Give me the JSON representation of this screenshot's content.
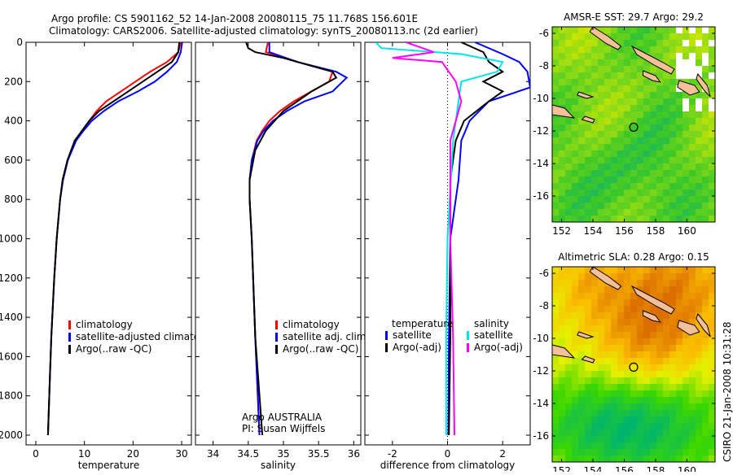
{
  "title_line1": "Argo profile: CS 5901162_52 14-Jan-2008 20080115_75 11.768S 156.601E",
  "title_line2": "Climatology: CARS2006. Satellite-adjusted climatology: synTS_20080113.nc (2d earlier)",
  "side_label": "CSIRO 21-Jan-2008 10:31:28",
  "colors": {
    "clim": "#ff0000",
    "sat": "#0000ff",
    "argo": "#000000",
    "sal_sat": "#00e5e5",
    "sal_argo": "#ff00ff"
  },
  "chart_data": [
    {
      "type": "line",
      "xlabel": "temperature",
      "ylabel": "",
      "xlim": [
        -2,
        32
      ],
      "ylim": [
        2050,
        0
      ],
      "xticks": [
        "0",
        "10",
        "20",
        "30"
      ],
      "xtick_values": [
        0,
        10,
        20,
        30
      ],
      "yticks": [
        "0",
        "200",
        "400",
        "600",
        "800",
        "1000",
        "1200",
        "1400",
        "1600",
        "1800",
        "2000"
      ],
      "legend": [
        "climatology",
        "satellite-adjusted climatology",
        "Argo(..raw -QC)"
      ],
      "series": [
        {
          "name": "climatology",
          "color": "clim",
          "depth": [
            0,
            50,
            100,
            150,
            200,
            250,
            300,
            350,
            400,
            450,
            500,
            600,
            700,
            800,
            1000,
            1200,
            1500,
            1700,
            2000
          ],
          "values": [
            29.8,
            29.3,
            27.0,
            23.5,
            20.5,
            17.5,
            14.5,
            12.5,
            11.0,
            9.5,
            8.2,
            6.6,
            5.6,
            5.0,
            4.3,
            3.8,
            3.2,
            2.9,
            2.5
          ]
        },
        {
          "name": "satellite-adjusted climatology",
          "color": "sat",
          "depth": [
            0,
            50,
            100,
            150,
            200,
            250,
            300,
            350,
            400,
            450,
            500,
            600,
            700,
            800,
            1000,
            1200,
            1500,
            1700,
            2000
          ],
          "values": [
            30.1,
            29.8,
            29.0,
            27.0,
            24.5,
            21.0,
            17.0,
            14.0,
            11.5,
            9.8,
            8.3,
            6.6,
            5.6,
            5.0,
            4.3,
            3.8,
            3.2,
            2.9,
            2.5
          ]
        },
        {
          "name": "Argo(..raw -QC)",
          "color": "argo",
          "depth": [
            0,
            50,
            100,
            150,
            200,
            250,
            300,
            350,
            400,
            450,
            500,
            600,
            700,
            800,
            1000,
            1200,
            1500,
            1700,
            2000
          ],
          "values": [
            29.5,
            29.3,
            28.0,
            25.0,
            22.0,
            19.0,
            16.0,
            13.0,
            11.0,
            9.5,
            8.0,
            6.5,
            5.5,
            5.0,
            4.3,
            3.8,
            3.2,
            2.9,
            2.5
          ]
        }
      ]
    },
    {
      "type": "line",
      "xlabel": "salinity",
      "xlim": [
        33.75,
        36.1
      ],
      "ylim": [
        2050,
        0
      ],
      "xticks": [
        "34",
        "34.5",
        "35",
        "35.5",
        "36"
      ],
      "xtick_values": [
        34,
        34.5,
        35,
        35.5,
        36
      ],
      "legend": [
        "climatology",
        "satellite adj. clim.",
        "Argo(..raw -QC)"
      ],
      "annotation": [
        "Argo AUSTRALIA",
        "PI: Susan Wijffels"
      ],
      "series": [
        {
          "name": "climatology",
          "color": "clim",
          "depth": [
            0,
            50,
            100,
            150,
            200,
            250,
            300,
            350,
            400,
            450,
            500,
            600,
            700,
            800,
            1000,
            1500,
            2000
          ],
          "values": [
            34.78,
            34.75,
            35.2,
            35.7,
            35.65,
            35.4,
            35.15,
            34.95,
            34.8,
            34.7,
            34.62,
            34.55,
            34.52,
            34.52,
            34.55,
            34.6,
            34.66
          ]
        },
        {
          "name": "satellite adj. clim.",
          "color": "sat",
          "depth": [
            0,
            50,
            100,
            150,
            180,
            250,
            300,
            350,
            400,
            450,
            500,
            600,
            700,
            800,
            1000,
            1500,
            2000
          ],
          "values": [
            34.8,
            34.8,
            35.2,
            35.75,
            35.9,
            35.7,
            35.3,
            35.05,
            34.85,
            34.72,
            34.63,
            34.55,
            34.52,
            34.52,
            34.55,
            34.6,
            34.66
          ]
        },
        {
          "name": "Argo(..raw -QC)",
          "color": "argo",
          "depth": [
            0,
            30,
            50,
            80,
            150,
            180,
            250,
            350,
            450,
            550,
            700,
            800,
            1000,
            1500,
            2000
          ],
          "values": [
            34.47,
            34.5,
            34.6,
            35.0,
            35.7,
            35.75,
            35.4,
            35.0,
            34.75,
            34.6,
            34.52,
            34.52,
            34.55,
            34.6,
            34.7
          ]
        }
      ]
    },
    {
      "type": "line",
      "xlabel": "difference from climatology",
      "xlim": [
        -3,
        3
      ],
      "ylim": [
        2050,
        0
      ],
      "xticks": [
        "-2",
        "0",
        "2"
      ],
      "xtick_values": [
        -2,
        0,
        2
      ],
      "legend_temperature_title": "temperature",
      "legend_salinity_title": "salinity",
      "legend": [
        "satellite",
        "Argo(-adj)",
        "satellite",
        "Argo(-adj)"
      ],
      "series": [
        {
          "name": "temperature satellite",
          "color": "sat",
          "depth": [
            0,
            60,
            100,
            150,
            230,
            300,
            400,
            500,
            700,
            800,
            1000,
            1500,
            2000
          ],
          "values": [
            1.0,
            2.0,
            2.6,
            2.9,
            3.0,
            1.5,
            0.8,
            0.5,
            0.4,
            0.3,
            0.1,
            0.05,
            0.03
          ]
        },
        {
          "name": "temperature Argo(-adj)",
          "color": "argo",
          "depth": [
            0,
            50,
            100,
            150,
            200,
            250,
            300,
            400,
            500,
            700,
            1000,
            1500,
            2000
          ],
          "values": [
            0.5,
            1.3,
            1.5,
            2.0,
            1.3,
            2.0,
            1.5,
            0.6,
            0.3,
            0.1,
            0.1,
            0.1,
            0.05
          ]
        },
        {
          "name": "salinity satellite",
          "color": "sal_sat",
          "depth": [
            0,
            30,
            60,
            100,
            150,
            200,
            300,
            500,
            1000,
            1500,
            2000
          ],
          "values": [
            -2.6,
            -2.4,
            0.5,
            2.0,
            1.8,
            0.5,
            0.4,
            0.2,
            0.0,
            -0.05,
            -0.05
          ]
        },
        {
          "name": "salinity Argo(-adj)",
          "color": "sal_argo",
          "depth": [
            0,
            50,
            80,
            100,
            200,
            300,
            500,
            1000,
            1500,
            2000
          ],
          "values": [
            -1.5,
            -0.5,
            -2.0,
            -0.2,
            0.3,
            0.5,
            0.1,
            0.1,
            0.2,
            0.25
          ]
        }
      ]
    },
    {
      "type": "heatmap",
      "title": "AMSR-E SST: 29.7 Argo: 29.2",
      "xlim": [
        151.4,
        161.8
      ],
      "ylim": [
        -17.6,
        -5.6
      ],
      "xticks": [
        "152",
        "154",
        "156",
        "158",
        "160"
      ],
      "yticks": [
        "-6",
        "-8",
        "-10",
        "-12",
        "-14",
        "-16"
      ],
      "marker": {
        "lon": 156.6,
        "lat": -11.77
      }
    },
    {
      "type": "heatmap",
      "title": "Altimetric SLA: 0.28 Argo: 0.15",
      "xlim": [
        151.4,
        161.8
      ],
      "ylim": [
        -17.6,
        -5.6
      ],
      "xticks": [
        "152",
        "154",
        "156",
        "158",
        "160"
      ],
      "yticks": [
        "-6",
        "-8",
        "-10",
        "-12",
        "-14",
        "-16"
      ],
      "marker": {
        "lon": 156.6,
        "lat": -11.77
      }
    }
  ]
}
